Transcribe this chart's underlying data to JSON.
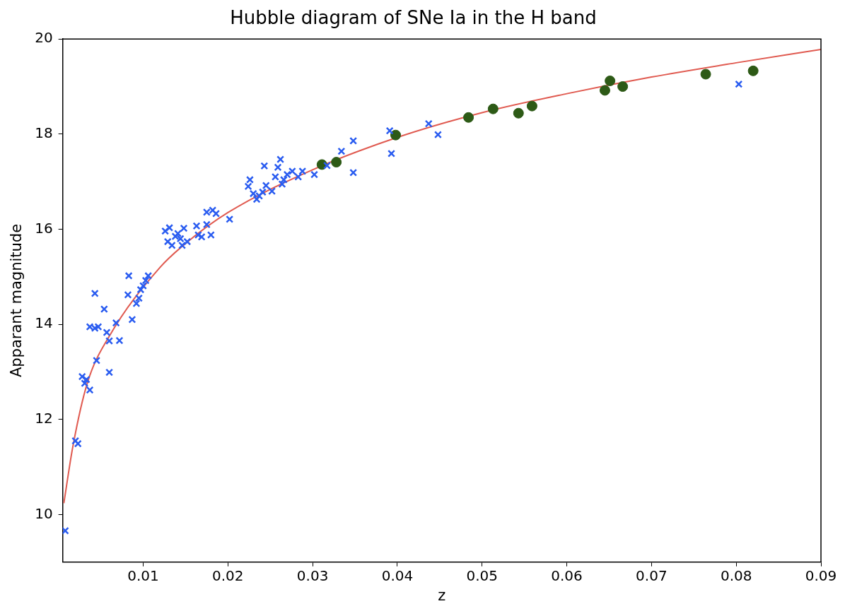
{
  "chart_data": {
    "type": "scatter",
    "title": "Hubble diagram of SNe Ia in the H band",
    "xlabel": "z",
    "ylabel": "Apparant magnitude",
    "xlim": [
      0.0005,
      0.09
    ],
    "xticks": [
      0.01,
      0.02,
      0.03,
      0.04,
      0.05,
      0.06,
      0.07,
      0.08,
      0.09
    ],
    "ylim": [
      9,
      20
    ],
    "yticks": [
      10,
      12,
      14,
      16,
      18,
      20
    ],
    "grid": false,
    "legend": false,
    "series": [
      {
        "type": "scatter",
        "marker": "cross",
        "color": "#2a5cf0",
        "x": [
          0.0008,
          0.002,
          0.0023,
          0.0028,
          0.0031,
          0.0033,
          0.0037,
          0.0045,
          0.0037,
          0.0043,
          0.0047,
          0.0043,
          0.0054,
          0.0057,
          0.006,
          0.006,
          0.0072,
          0.0068,
          0.0082,
          0.0083,
          0.0087,
          0.0092,
          0.0095,
          0.0097,
          0.01,
          0.0103,
          0.0106,
          0.0126,
          0.0131,
          0.0129,
          0.0134,
          0.0138,
          0.0141,
          0.0144,
          0.0146,
          0.0148,
          0.0152,
          0.0163,
          0.0165,
          0.0169,
          0.0175,
          0.018,
          0.0175,
          0.0182,
          0.0186,
          0.0202,
          0.0224,
          0.0226,
          0.023,
          0.0234,
          0.0237,
          0.0241,
          0.0243,
          0.0245,
          0.0252,
          0.0256,
          0.0259,
          0.0262,
          0.0264,
          0.0266,
          0.027,
          0.0276,
          0.0283,
          0.0288,
          0.0302,
          0.0317,
          0.0334,
          0.0348,
          0.0348,
          0.0391,
          0.0393,
          0.0437,
          0.0448,
          0.0803
        ],
        "values": [
          9.66,
          11.55,
          11.49,
          12.9,
          12.76,
          12.84,
          12.62,
          13.24,
          13.95,
          13.92,
          13.95,
          14.65,
          14.32,
          13.83,
          13.65,
          12.99,
          13.66,
          14.03,
          14.62,
          15.02,
          14.1,
          14.44,
          14.55,
          14.73,
          14.81,
          14.92,
          15.02,
          15.96,
          16.03,
          15.74,
          15.66,
          15.85,
          15.91,
          15.8,
          15.66,
          16.02,
          15.74,
          16.07,
          15.88,
          15.84,
          16.1,
          15.88,
          16.36,
          16.4,
          16.33,
          16.21,
          16.9,
          17.04,
          16.75,
          16.63,
          16.7,
          16.78,
          17.33,
          16.92,
          16.8,
          17.1,
          17.3,
          17.47,
          16.95,
          17.04,
          17.15,
          17.22,
          17.1,
          17.22,
          17.15,
          17.34,
          17.64,
          17.86,
          17.19,
          18.07,
          17.59,
          18.22,
          17.99,
          19.05
        ]
      },
      {
        "type": "scatter",
        "marker": "circle",
        "color": "#2d5a16",
        "x": [
          0.0311,
          0.0328,
          0.0398,
          0.0484,
          0.0513,
          0.0543,
          0.0559,
          0.0645,
          0.0651,
          0.0666,
          0.0764,
          0.082
        ],
        "values": [
          17.36,
          17.41,
          17.98,
          18.35,
          18.53,
          18.44,
          18.59,
          18.92,
          19.12,
          19.0,
          19.26,
          19.33
        ]
      },
      {
        "type": "line",
        "marker": "none",
        "color": "#e05a50",
        "x": [
          0.00064,
          0.0017,
          0.0034,
          0.006,
          0.012,
          0.015,
          0.02,
          0.03,
          0.04,
          0.05,
          0.06,
          0.07,
          0.08,
          0.09
        ],
        "values": [
          10.24,
          11.43,
          12.76,
          13.75,
          15.2,
          15.7,
          16.35,
          17.25,
          17.93,
          18.45,
          18.85,
          19.2,
          19.5,
          19.78
        ]
      }
    ]
  }
}
